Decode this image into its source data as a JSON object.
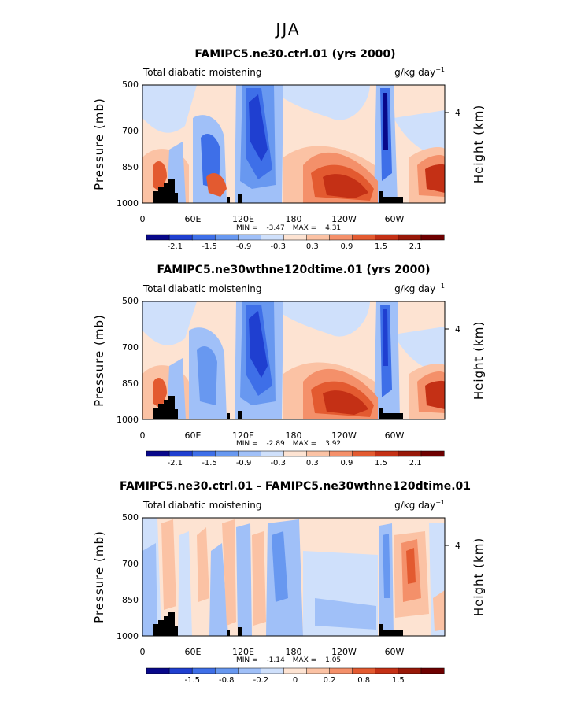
{
  "page_title": "JJA",
  "colorbar_colors": [
    "#08088a",
    "#1f3fd0",
    "#3e6fe8",
    "#6898f0",
    "#a0c0f8",
    "#cfe0fb",
    "#fde3d2",
    "#fbc2a4",
    "#f4906a",
    "#e35a30",
    "#c43015",
    "#981808",
    "#6e0000"
  ],
  "chart_data": [
    {
      "type": "heatmap",
      "title": "FAMIPC5.ne30.ctrl.01 (yrs 2000)",
      "field_label": "Total diabatic moistening",
      "units_base": "g/kg day",
      "units_exp": "−1",
      "ylabel": "Pressure (mb)",
      "y2label": "Height (km)",
      "yticks": [
        "500",
        "700",
        "850",
        "1000"
      ],
      "y2ticks": [
        "4"
      ],
      "xticks": [
        "0",
        "60E",
        "120E",
        "180",
        "120W",
        "60W"
      ],
      "min_label": "MIN =",
      "min_value": "-3.47",
      "max_label": "MAX =",
      "max_value": "4.31",
      "colorbar_ticks": [
        "-2.1",
        "-1.5",
        "-0.9",
        "-0.3",
        "0.3",
        "0.9",
        "1.5",
        "2.1"
      ]
    },
    {
      "type": "heatmap",
      "title": "FAMIPC5.ne30wthne120dtime.01 (yrs 2000)",
      "field_label": "Total diabatic moistening",
      "units_base": "g/kg day",
      "units_exp": "−1",
      "ylabel": "Pressure (mb)",
      "y2label": "Height (km)",
      "yticks": [
        "500",
        "700",
        "850",
        "1000"
      ],
      "y2ticks": [
        "4"
      ],
      "xticks": [
        "0",
        "60E",
        "120E",
        "180",
        "120W",
        "60W"
      ],
      "min_label": "MIN =",
      "min_value": "-2.89",
      "max_label": "MAX =",
      "max_value": "3.92",
      "colorbar_ticks": [
        "-2.1",
        "-1.5",
        "-0.9",
        "-0.3",
        "0.3",
        "0.9",
        "1.5",
        "2.1"
      ]
    },
    {
      "type": "heatmap",
      "title": "FAMIPC5.ne30.ctrl.01 - FAMIPC5.ne30wthne120dtime.01",
      "field_label": "Total diabatic moistening",
      "units_base": "g/kg day",
      "units_exp": "−1",
      "ylabel": "Pressure (mb)",
      "y2label": "Height (km)",
      "yticks": [
        "500",
        "700",
        "850",
        "1000"
      ],
      "y2ticks": [
        "4"
      ],
      "xticks": [
        "0",
        "60E",
        "120E",
        "180",
        "120W",
        "60W"
      ],
      "min_label": "MIN =",
      "min_value": "-1.14",
      "max_label": "MAX =",
      "max_value": "1.05",
      "colorbar_ticks": [
        "-1.5",
        "-0.8",
        "-0.2",
        "0",
        "0.2",
        "0.8",
        "1.5"
      ]
    }
  ]
}
